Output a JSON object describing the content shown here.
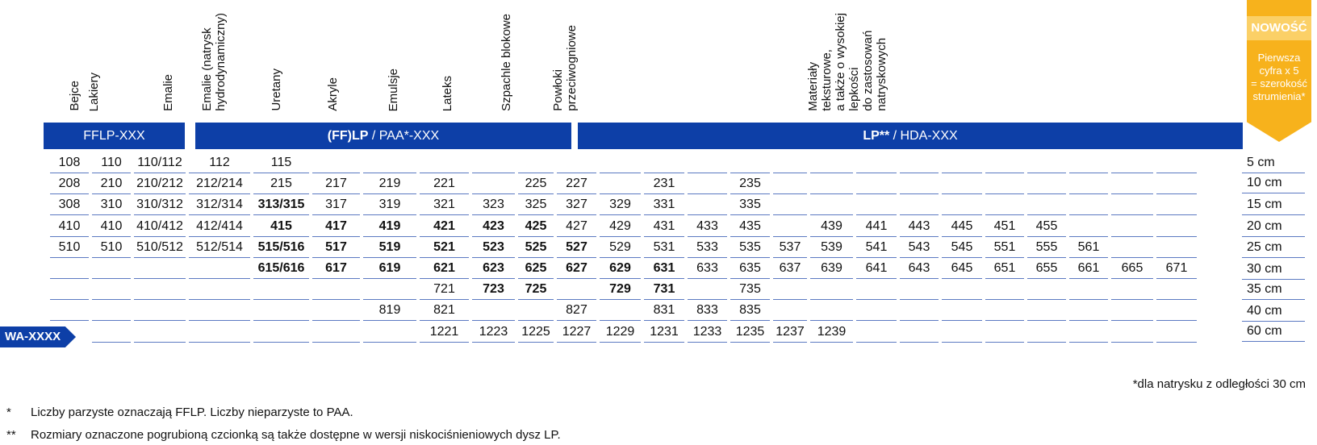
{
  "columns": [
    {
      "key": "bejce",
      "label": "Bejce"
    },
    {
      "key": "lakiery",
      "label": "Lakiery"
    },
    {
      "key": "emalie",
      "label": "Emalie"
    },
    {
      "key": "emalie_hydro",
      "label": "Emalie (natrysk\nhydrodynamiczny)"
    },
    {
      "key": "uretany",
      "label": "Uretany"
    },
    {
      "key": "akryle",
      "label": "Akryle"
    },
    {
      "key": "emulsje",
      "label": "Emulsje"
    },
    {
      "key": "lateks",
      "label": "Lateks"
    },
    {
      "key": "szpachle",
      "label": "Szpachle blokowe"
    },
    {
      "key": "powloki",
      "label": "Powłoki\nprzeciwogniowe"
    },
    {
      "key": "materialy",
      "label": "Materiały\nteksturowe,\na także o wysokiej\nlepkości\ndo zastosowań\nnatryskowych"
    }
  ],
  "bands": [
    {
      "key": "fflp",
      "bold": "",
      "text": "FFLP-XXX"
    },
    {
      "key": "paa",
      "bold": "(FF)LP",
      "text": " / PAA*-XXX"
    },
    {
      "key": "hda",
      "bold": "LP**",
      "text": " / HDA-XXX"
    }
  ],
  "badge": {
    "title": "NOWOŚĆ",
    "text": "Pierwsza\ncyfra x 5\n= szerokość\nstrumienia*"
  },
  "wa_label": "WA-XXXX",
  "rows": [
    {
      "size": "5 cm",
      "cells": [
        {
          "c": 0,
          "v": "108"
        },
        {
          "c": 1,
          "v": "110"
        },
        {
          "c": 2,
          "v": "110/112"
        },
        {
          "c": 3,
          "v": "112"
        },
        {
          "c": 4,
          "v": "115"
        }
      ]
    },
    {
      "size": "10 cm",
      "cells": [
        {
          "c": 0,
          "v": "208"
        },
        {
          "c": 1,
          "v": "210"
        },
        {
          "c": 2,
          "v": "210/212"
        },
        {
          "c": 3,
          "v": "212/214"
        },
        {
          "c": 4,
          "v": "215"
        },
        {
          "c": 5,
          "v": "217"
        },
        {
          "c": 6,
          "v": "219"
        },
        {
          "c": 7,
          "v": "221"
        },
        {
          "c": 9,
          "v": "225"
        },
        {
          "c": 10,
          "v": "227"
        },
        {
          "c": 12,
          "v": "231"
        },
        {
          "c": 14,
          "v": "235"
        }
      ]
    },
    {
      "size": "15 cm",
      "cells": [
        {
          "c": 0,
          "v": "308"
        },
        {
          "c": 1,
          "v": "310"
        },
        {
          "c": 2,
          "v": "310/312"
        },
        {
          "c": 3,
          "v": "312/314"
        },
        {
          "c": 4,
          "v": "313/315",
          "b": true
        },
        {
          "c": 5,
          "v": "317"
        },
        {
          "c": 6,
          "v": "319"
        },
        {
          "c": 7,
          "v": "321"
        },
        {
          "c": 8,
          "v": "323"
        },
        {
          "c": 9,
          "v": "325"
        },
        {
          "c": 10,
          "v": "327"
        },
        {
          "c": 11,
          "v": "329"
        },
        {
          "c": 12,
          "v": "331"
        },
        {
          "c": 14,
          "v": "335"
        }
      ]
    },
    {
      "size": "20 cm",
      "cells": [
        {
          "c": 0,
          "v": "410"
        },
        {
          "c": 1,
          "v": "410"
        },
        {
          "c": 2,
          "v": "410/412"
        },
        {
          "c": 3,
          "v": "412/414"
        },
        {
          "c": 4,
          "v": "415",
          "b": true
        },
        {
          "c": 5,
          "v": "417",
          "b": true
        },
        {
          "c": 6,
          "v": "419",
          "b": true
        },
        {
          "c": 7,
          "v": "421",
          "b": true
        },
        {
          "c": 8,
          "v": "423",
          "b": true
        },
        {
          "c": 9,
          "v": "425",
          "b": true
        },
        {
          "c": 10,
          "v": "427"
        },
        {
          "c": 11,
          "v": "429"
        },
        {
          "c": 12,
          "v": "431"
        },
        {
          "c": 13,
          "v": "433"
        },
        {
          "c": 14,
          "v": "435"
        },
        {
          "c": 16,
          "v": "439"
        },
        {
          "c": 17,
          "v": "441"
        },
        {
          "c": 18,
          "v": "443"
        },
        {
          "c": 19,
          "v": "445"
        },
        {
          "c": 20,
          "v": "451"
        },
        {
          "c": 21,
          "v": "455"
        }
      ]
    },
    {
      "size": "25 cm",
      "cells": [
        {
          "c": 0,
          "v": "510"
        },
        {
          "c": 1,
          "v": "510"
        },
        {
          "c": 2,
          "v": "510/512"
        },
        {
          "c": 3,
          "v": "512/514"
        },
        {
          "c": 4,
          "v": "515/516",
          "b": true
        },
        {
          "c": 5,
          "v": "517",
          "b": true
        },
        {
          "c": 6,
          "v": "519",
          "b": true
        },
        {
          "c": 7,
          "v": "521",
          "b": true
        },
        {
          "c": 8,
          "v": "523",
          "b": true
        },
        {
          "c": 9,
          "v": "525",
          "b": true
        },
        {
          "c": 10,
          "v": "527",
          "b": true
        },
        {
          "c": 11,
          "v": "529"
        },
        {
          "c": 12,
          "v": "531"
        },
        {
          "c": 13,
          "v": "533"
        },
        {
          "c": 14,
          "v": "535"
        },
        {
          "c": 15,
          "v": "537"
        },
        {
          "c": 16,
          "v": "539"
        },
        {
          "c": 17,
          "v": "541"
        },
        {
          "c": 18,
          "v": "543"
        },
        {
          "c": 19,
          "v": "545"
        },
        {
          "c": 20,
          "v": "551"
        },
        {
          "c": 21,
          "v": "555"
        },
        {
          "c": 22,
          "v": "561"
        }
      ]
    },
    {
      "size": "30 cm",
      "cells": [
        {
          "c": 4,
          "v": "615/616",
          "b": true
        },
        {
          "c": 5,
          "v": "617",
          "b": true
        },
        {
          "c": 6,
          "v": "619",
          "b": true
        },
        {
          "c": 7,
          "v": "621",
          "b": true
        },
        {
          "c": 8,
          "v": "623",
          "b": true
        },
        {
          "c": 9,
          "v": "625",
          "b": true
        },
        {
          "c": 10,
          "v": "627",
          "b": true
        },
        {
          "c": 11,
          "v": "629",
          "b": true
        },
        {
          "c": 12,
          "v": "631",
          "b": true
        },
        {
          "c": 13,
          "v": "633"
        },
        {
          "c": 14,
          "v": "635"
        },
        {
          "c": 15,
          "v": "637"
        },
        {
          "c": 16,
          "v": "639"
        },
        {
          "c": 17,
          "v": "641"
        },
        {
          "c": 18,
          "v": "643"
        },
        {
          "c": 19,
          "v": "645"
        },
        {
          "c": 20,
          "v": "651"
        },
        {
          "c": 21,
          "v": "655"
        },
        {
          "c": 22,
          "v": "661"
        },
        {
          "c": 23,
          "v": "665"
        },
        {
          "c": 24,
          "v": "671"
        }
      ]
    },
    {
      "size": "35 cm",
      "cells": [
        {
          "c": 7,
          "v": "721"
        },
        {
          "c": 8,
          "v": "723",
          "b": true
        },
        {
          "c": 9,
          "v": "725",
          "b": true
        },
        {
          "c": 11,
          "v": "729",
          "b": true
        },
        {
          "c": 12,
          "v": "731",
          "b": true
        },
        {
          "c": 14,
          "v": "735"
        }
      ]
    },
    {
      "size": "40 cm",
      "cells": [
        {
          "c": 6,
          "v": "819"
        },
        {
          "c": 7,
          "v": "821"
        },
        {
          "c": 10,
          "v": "827"
        },
        {
          "c": 12,
          "v": "831"
        },
        {
          "c": 13,
          "v": "833"
        },
        {
          "c": 14,
          "v": "835"
        }
      ]
    },
    {
      "size": "60 cm",
      "cells": [
        {
          "c": 7,
          "v": "1221"
        },
        {
          "c": 8,
          "v": "1223"
        },
        {
          "c": 9,
          "v": "1225"
        },
        {
          "c": 10,
          "v": "1227"
        },
        {
          "c": 11,
          "v": "1229"
        },
        {
          "c": 12,
          "v": "1231"
        },
        {
          "c": 13,
          "v": "1233"
        },
        {
          "c": 14,
          "v": "1235"
        },
        {
          "c": 15,
          "v": "1237"
        },
        {
          "c": 16,
          "v": "1239"
        }
      ]
    }
  ],
  "footnotes": {
    "distance": "*dla natrysku z odległości 30 cm",
    "star1_mark": "*",
    "star1": "Liczby parzyste oznaczają FFLP. Liczby nieparzyste to PAA.",
    "star2_mark": "**",
    "star2": "Rozmiary oznaczone pogrubioną czcionką są także dostępne w wersji niskociśnieniowych dysz LP."
  }
}
